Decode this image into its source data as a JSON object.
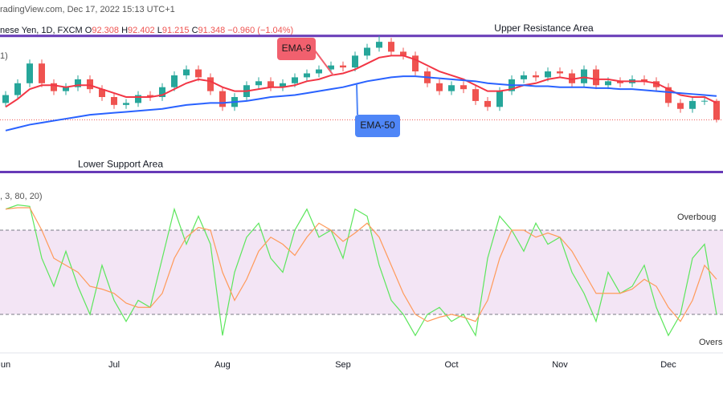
{
  "header": {
    "source": "radingView.com, Dec 17, 2022 15:13 UTC+1",
    "symbol": "nese Yen, 1D, FXCM",
    "open_label": "O",
    "high_label": "H",
    "low_label": "L",
    "close_label": "C",
    "change": "−0.960",
    "change_pct": "(−1.04%)",
    "indicator_label": "1)"
  },
  "chart_data": [
    {
      "type": "candlestick",
      "ylim": [
        88.8,
        96.2
      ],
      "up_color": "#26a69a",
      "down_color": "#ef5350",
      "categories": [
        "un",
        null,
        null,
        null,
        null,
        null,
        null,
        null,
        null,
        "Jul",
        null,
        null,
        null,
        null,
        null,
        null,
        null,
        null,
        "Aug",
        null,
        null,
        null,
        null,
        null,
        null,
        null,
        null,
        null,
        "Sep",
        null,
        null,
        null,
        null,
        null,
        null,
        null,
        null,
        "Oct",
        null,
        null,
        null,
        null,
        null,
        null,
        null,
        null,
        "Nov",
        null,
        null,
        null,
        null,
        null,
        null,
        null,
        null,
        "Dec",
        null,
        null,
        null,
        null
      ],
      "open": [
        92.2,
        92.6,
        93.2,
        94.2,
        93.2,
        92.8,
        93.0,
        93.4,
        92.9,
        92.5,
        92.1,
        92.2,
        92.6,
        92.5,
        93.0,
        93.6,
        93.9,
        93.5,
        92.8,
        92.0,
        92.5,
        93.1,
        93.3,
        93.0,
        93.2,
        93.5,
        93.7,
        93.9,
        94.1,
        94.0,
        94.6,
        95.0,
        95.3,
        94.8,
        94.6,
        93.8,
        93.2,
        92.8,
        93.1,
        92.9,
        92.3,
        92.0,
        92.8,
        93.4,
        93.6,
        93.5,
        93.8,
        93.7,
        93.2,
        93.9,
        93.1,
        93.3,
        93.2,
        93.4,
        93.3,
        93.0,
        92.2,
        91.9,
        92.3,
        92.308
      ],
      "high": [
        92.8,
        93.4,
        94.4,
        94.4,
        93.4,
        93.2,
        93.6,
        93.6,
        93.1,
        92.7,
        92.4,
        92.8,
        92.8,
        93.2,
        93.8,
        94.1,
        94.1,
        93.7,
        93.0,
        92.7,
        93.3,
        93.5,
        93.5,
        93.4,
        93.7,
        93.9,
        94.1,
        94.3,
        94.3,
        94.8,
        95.2,
        95.6,
        95.5,
        95.0,
        94.8,
        94.0,
        93.4,
        93.3,
        93.3,
        93.1,
        92.5,
        93.0,
        93.6,
        93.8,
        93.8,
        94.0,
        94.0,
        93.9,
        94.1,
        94.1,
        93.5,
        93.5,
        93.6,
        93.6,
        93.5,
        93.2,
        92.4,
        92.5,
        92.5,
        92.402
      ],
      "low": [
        92.0,
        92.4,
        93.0,
        93.0,
        92.6,
        92.6,
        92.8,
        92.7,
        92.3,
        91.9,
        91.9,
        92.0,
        92.3,
        92.3,
        92.8,
        93.4,
        93.3,
        92.6,
        91.8,
        91.8,
        92.3,
        92.9,
        92.8,
        92.8,
        93.0,
        93.3,
        93.5,
        93.7,
        93.8,
        93.8,
        94.4,
        94.8,
        94.6,
        94.4,
        93.6,
        93.0,
        92.6,
        92.6,
        92.7,
        92.1,
        91.8,
        91.8,
        92.6,
        93.2,
        93.3,
        93.3,
        93.5,
        93.0,
        93.0,
        92.9,
        92.9,
        93.0,
        93.0,
        93.1,
        92.8,
        92.0,
        91.7,
        91.7,
        92.1,
        91.215
      ],
      "close": [
        92.6,
        93.2,
        94.2,
        93.2,
        92.8,
        93.0,
        93.4,
        92.9,
        92.5,
        92.1,
        92.2,
        92.6,
        92.5,
        93.0,
        93.6,
        93.9,
        93.5,
        92.8,
        92.0,
        92.5,
        93.1,
        93.3,
        93.0,
        93.2,
        93.5,
        93.7,
        93.9,
        94.1,
        94.0,
        94.6,
        95.0,
        95.3,
        94.8,
        94.6,
        93.8,
        93.2,
        92.8,
        93.1,
        92.9,
        92.3,
        92.0,
        92.8,
        93.4,
        93.6,
        93.5,
        93.8,
        93.7,
        93.2,
        93.9,
        93.1,
        93.3,
        93.2,
        93.4,
        93.3,
        93.0,
        92.2,
        91.9,
        92.3,
        92.31,
        91.348
      ],
      "series": [
        {
          "name": "EMA-9",
          "color": "#f23645",
          "label_color": "#f1606e",
          "values": [
            92.0,
            92.4,
            92.9,
            93.1,
            93.1,
            93.0,
            93.1,
            93.1,
            92.9,
            92.7,
            92.5,
            92.5,
            92.5,
            92.6,
            92.9,
            93.2,
            93.4,
            93.3,
            93.0,
            92.8,
            92.8,
            92.9,
            93.0,
            93.0,
            93.1,
            93.3,
            93.4,
            93.6,
            93.7,
            93.9,
            94.2,
            94.5,
            94.6,
            94.6,
            94.4,
            94.1,
            93.8,
            93.6,
            93.4,
            93.1,
            92.8,
            92.8,
            92.9,
            93.1,
            93.2,
            93.4,
            93.5,
            93.4,
            93.5,
            93.4,
            93.4,
            93.3,
            93.3,
            93.3,
            93.2,
            92.9,
            92.6,
            92.5,
            92.5,
            92.2
          ]
        },
        {
          "name": "EMA-50",
          "color": "#2962ff",
          "label_color": "#4f86f7",
          "values": [
            90.8,
            90.95,
            91.1,
            91.2,
            91.3,
            91.4,
            91.5,
            91.6,
            91.65,
            91.7,
            91.75,
            91.8,
            91.85,
            91.9,
            92.0,
            92.1,
            92.15,
            92.2,
            92.2,
            92.25,
            92.3,
            92.4,
            92.5,
            92.55,
            92.6,
            92.7,
            92.8,
            92.9,
            93.0,
            93.15,
            93.3,
            93.4,
            93.5,
            93.55,
            93.55,
            93.5,
            93.45,
            93.4,
            93.35,
            93.3,
            93.2,
            93.15,
            93.1,
            93.1,
            93.05,
            93.05,
            93.0,
            93.0,
            93.0,
            92.95,
            92.95,
            92.9,
            92.9,
            92.85,
            92.8,
            92.75,
            92.7,
            92.65,
            92.6,
            92.55
          ]
        }
      ],
      "levels": [
        {
          "label": "Upper Resistance Area",
          "value": 95.6,
          "color": "#673ab7"
        },
        {
          "label": "Lower Support Area",
          "value": 88.7,
          "color": "#673ab7"
        }
      ],
      "last_price_color": "#ef5350"
    },
    {
      "type": "line",
      "title": ", 3, 80, 20)",
      "ylim": [
        0,
        100
      ],
      "band_color": "#f3e5f5",
      "series": [
        {
          "color": "#5ce65c",
          "values": [
            95,
            98,
            97,
            60,
            40,
            65,
            40,
            20,
            55,
            30,
            15,
            30,
            25,
            60,
            95,
            70,
            90,
            70,
            5,
            50,
            75,
            85,
            60,
            50,
            80,
            95,
            75,
            80,
            60,
            95,
            90,
            55,
            30,
            20,
            5,
            20,
            25,
            15,
            20,
            5,
            60,
            90,
            80,
            65,
            85,
            70,
            75,
            50,
            35,
            15,
            50,
            35,
            40,
            55,
            25,
            5,
            20,
            60,
            70,
            20
          ]
        },
        {
          "color": "#ff9a5a",
          "values": [
            95,
            96,
            96,
            80,
            60,
            55,
            50,
            40,
            38,
            35,
            28,
            25,
            25,
            35,
            60,
            75,
            82,
            80,
            50,
            30,
            45,
            65,
            75,
            70,
            62,
            75,
            85,
            80,
            72,
            78,
            85,
            75,
            55,
            35,
            20,
            15,
            18,
            20,
            18,
            15,
            30,
            60,
            80,
            80,
            75,
            78,
            75,
            65,
            50,
            35,
            35,
            35,
            38,
            45,
            40,
            25,
            15,
            30,
            55,
            45
          ]
        }
      ],
      "levels": [
        {
          "label": "Overboug",
          "value": 80
        },
        {
          "label": "Overs",
          "value": 20
        }
      ]
    }
  ]
}
